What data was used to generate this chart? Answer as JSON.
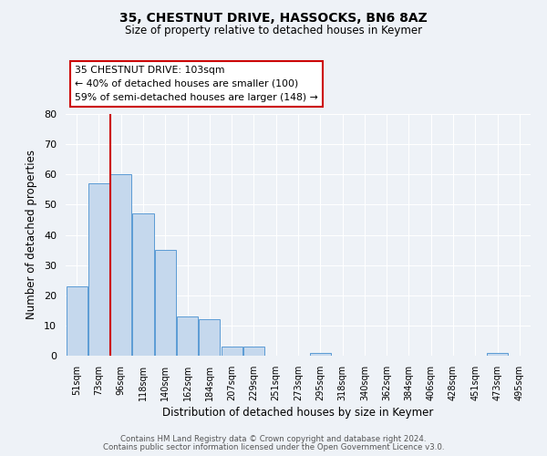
{
  "title": "35, CHESTNUT DRIVE, HASSOCKS, BN6 8AZ",
  "subtitle": "Size of property relative to detached houses in Keymer",
  "xlabel": "Distribution of detached houses by size in Keymer",
  "ylabel": "Number of detached properties",
  "bar_labels": [
    "51sqm",
    "73sqm",
    "96sqm",
    "118sqm",
    "140sqm",
    "162sqm",
    "184sqm",
    "207sqm",
    "229sqm",
    "251sqm",
    "273sqm",
    "295sqm",
    "318sqm",
    "340sqm",
    "362sqm",
    "384sqm",
    "406sqm",
    "428sqm",
    "451sqm",
    "473sqm",
    "495sqm"
  ],
  "bar_values": [
    23,
    57,
    60,
    47,
    35,
    13,
    12,
    3,
    3,
    0,
    0,
    1,
    0,
    0,
    0,
    0,
    0,
    0,
    0,
    1,
    0
  ],
  "bar_color": "#c5d8ed",
  "bar_edgecolor": "#5b9bd5",
  "vline_x": 1.5,
  "vline_color": "#cc0000",
  "ylim": [
    0,
    80
  ],
  "yticks": [
    0,
    10,
    20,
    30,
    40,
    50,
    60,
    70,
    80
  ],
  "annotation_title": "35 CHESTNUT DRIVE: 103sqm",
  "annotation_line1": "← 40% of detached houses are smaller (100)",
  "annotation_line2": "59% of semi-detached houses are larger (148) →",
  "annotation_box_edgecolor": "#cc0000",
  "footer1": "Contains HM Land Registry data © Crown copyright and database right 2024.",
  "footer2": "Contains public sector information licensed under the Open Government Licence v3.0.",
  "background_color": "#eef2f7",
  "grid_color": "#ffffff",
  "fig_bg": "#eef2f7"
}
